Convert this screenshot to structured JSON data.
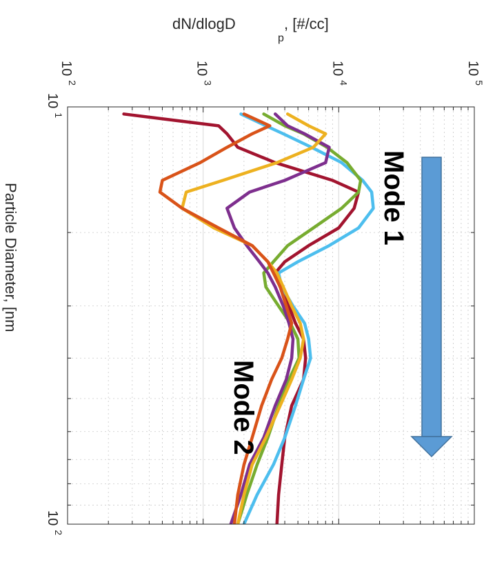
{
  "chart_data": {
    "type": "line",
    "orientation": "rotated 90 degrees clockwise",
    "xlabel": "Particle Diameter, [nm",
    "ylabel": "dN/dlogD",
    "ylabel_subscript": "p",
    "ylabel_suffix": ", [#/cc]",
    "x_scale": "log",
    "y_scale": "log",
    "xlim": [
      10,
      100
    ],
    "ylim": [
      100,
      100000
    ],
    "x_tick_labels": [
      {
        "value": 10,
        "base": "10",
        "exp": "1"
      },
      {
        "value": 100,
        "base": "10",
        "exp": "2"
      }
    ],
    "y_tick_labels": [
      {
        "value": 100,
        "base": "10",
        "exp": "2"
      },
      {
        "value": 1000,
        "base": "10",
        "exp": "3"
      },
      {
        "value": 10000,
        "base": "10",
        "exp": "4"
      },
      {
        "value": 100000,
        "base": "10",
        "exp": "5"
      }
    ],
    "grid": true,
    "annotations": [
      {
        "text": "Mode 1"
      },
      {
        "text": "Mode 2"
      },
      {
        "type": "arrow",
        "meaning": "direction of evolution",
        "color": "#5b9bd5"
      }
    ],
    "series": [
      {
        "color": "#a2142f",
        "x": [
          10.4,
          11.1,
          11.6,
          12.5,
          13.6,
          15.0,
          16.0,
          17.5,
          19.5,
          21.5,
          23.5,
          25.0,
          27.0,
          30.0,
          33.0,
          36.0,
          40.0,
          45.0,
          52.0,
          62.0,
          72.0,
          85.0,
          100.0
        ],
        "y": [
          260,
          1300,
          1500,
          1800,
          3400,
          9000,
          14000,
          13000,
          10000,
          6000,
          4000,
          3400,
          3700,
          4300,
          4800,
          5500,
          5700,
          5500,
          4500,
          4000,
          3800,
          3600,
          3500
        ]
      },
      {
        "color": "#4dbeee",
        "x": [
          10.4,
          11.1,
          11.6,
          12.5,
          13.6,
          15.0,
          16.0,
          17.5,
          19.5,
          21.5,
          23.5,
          25.0,
          27.0,
          30.0,
          33.0,
          36.0,
          40.0,
          45.0,
          52.0,
          62.0,
          72.0,
          85.0,
          100.0
        ],
        "y": [
          1900,
          2900,
          3900,
          6300,
          10500,
          15000,
          17500,
          18000,
          14000,
          8500,
          5000,
          3600,
          3800,
          4600,
          5600,
          6000,
          6200,
          5500,
          4800,
          4000,
          3300,
          2500,
          2000
        ]
      },
      {
        "color": "#77ac30",
        "x": [
          10.4,
          11.1,
          11.6,
          12.5,
          13.6,
          15.0,
          16.0,
          17.5,
          19.5,
          21.5,
          23.5,
          25.0,
          27.0,
          30.0,
          33.0,
          36.0,
          40.0,
          45.0,
          52.0,
          62.0,
          72.0,
          85.0,
          100.0
        ],
        "y": [
          2800,
          4000,
          5500,
          8200,
          11500,
          14500,
          14000,
          10500,
          6500,
          4200,
          3300,
          2800,
          2900,
          3600,
          4400,
          5000,
          5100,
          4300,
          3600,
          3000,
          2500,
          2100,
          1800
        ]
      },
      {
        "color": "#7e2f8e",
        "x": [
          10.4,
          11.1,
          11.6,
          12.5,
          13.6,
          15.0,
          16.0,
          17.5,
          19.5,
          21.5,
          23.5,
          25.0,
          27.0,
          30.0,
          33.0,
          36.0,
          40.0,
          45.0,
          52.0,
          62.0,
          72.0,
          85.0,
          100.0
        ],
        "y": [
          3400,
          4200,
          5600,
          8500,
          8000,
          4000,
          2200,
          1500,
          1700,
          2100,
          2600,
          3000,
          3400,
          3900,
          4300,
          4600,
          4500,
          4100,
          3400,
          2800,
          2200,
          1900,
          1600
        ]
      },
      {
        "color": "#edb120",
        "x": [
          10.4,
          11.1,
          11.6,
          12.5,
          13.6,
          15.0,
          16.0,
          17.5,
          19.5,
          21.5,
          23.5,
          25.0,
          27.0,
          30.0,
          33.0,
          36.0,
          40.0,
          45.0,
          52.0,
          62.0,
          72.0,
          85.0,
          100.0
        ],
        "y": [
          4200,
          6000,
          8000,
          6500,
          3500,
          1400,
          750,
          700,
          1200,
          2300,
          3000,
          3500,
          3900,
          4500,
          5200,
          5500,
          5200,
          4500,
          3700,
          2900,
          2300,
          2000,
          1800
        ]
      },
      {
        "color": "#d95319",
        "x": [
          10.4,
          11.1,
          11.6,
          12.5,
          13.6,
          15.0,
          16.0,
          17.5,
          19.5,
          21.5,
          23.5,
          25.0,
          27.0,
          30.0,
          33.0,
          36.0,
          40.0,
          45.0,
          52.0,
          62.0,
          72.0,
          85.0,
          100.0
        ],
        "y": [
          2000,
          3100,
          2300,
          1500,
          950,
          500,
          480,
          700,
          1300,
          2300,
          3000,
          3300,
          3700,
          4100,
          4500,
          4200,
          3800,
          3200,
          2700,
          2300,
          2000,
          1800,
          1700
        ]
      }
    ]
  }
}
